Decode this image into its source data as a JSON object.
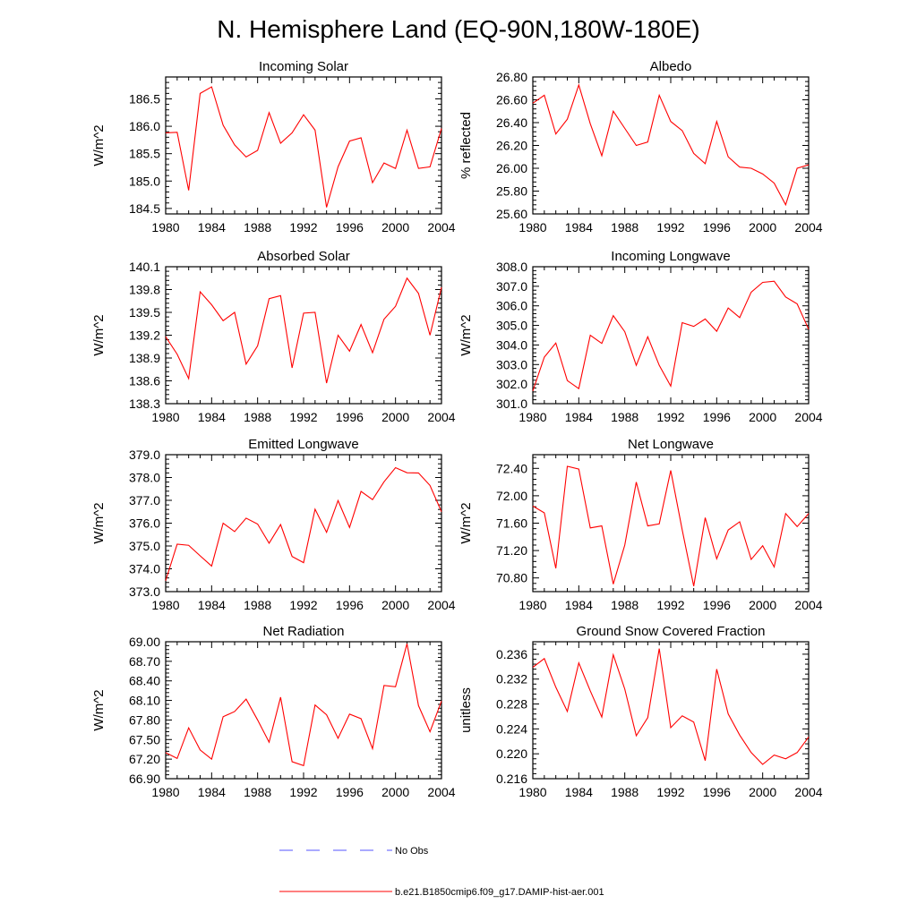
{
  "title": "N. Hemisphere Land (EQ-90N,180W-180E)",
  "chart_data": [
    {
      "type": "line",
      "title": "Incoming Solar",
      "ylabel": "W/m^2",
      "xlim": [
        1980,
        2004
      ],
      "ylim": [
        184.4,
        186.9
      ],
      "yticks": [
        "184.5",
        "185.0",
        "185.5",
        "186.0",
        "186.5"
      ],
      "x": [
        1980,
        1981,
        1982,
        1983,
        1984,
        1985,
        1986,
        1987,
        1988,
        1989,
        1990,
        1991,
        1992,
        1993,
        1994,
        1995,
        1996,
        1997,
        1998,
        1999,
        2000,
        2001,
        2002,
        2003,
        2004
      ],
      "series": [
        {
          "name": "b.e21.B1850cmip6.f09_g17.DAMIP-hist-aer.001",
          "color": "#ff0000",
          "values": [
            185.88,
            185.89,
            184.83,
            186.6,
            186.72,
            186.02,
            185.66,
            185.44,
            185.56,
            186.25,
            185.69,
            185.88,
            186.21,
            185.93,
            184.52,
            185.26,
            185.73,
            185.79,
            184.97,
            185.33,
            185.23,
            185.93,
            185.23,
            185.26,
            185.96
          ]
        }
      ]
    },
    {
      "type": "line",
      "title": "Albedo",
      "ylabel": "% reflected",
      "xlim": [
        1980,
        2004
      ],
      "ylim": [
        25.6,
        26.8
      ],
      "yticks": [
        "25.60",
        "25.80",
        "26.00",
        "26.20",
        "26.40",
        "26.60",
        "26.80"
      ],
      "x": [
        1980,
        1981,
        1982,
        1983,
        1984,
        1985,
        1986,
        1987,
        1988,
        1989,
        1990,
        1991,
        1992,
        1993,
        1994,
        1995,
        1996,
        1997,
        1998,
        1999,
        2000,
        2001,
        2002,
        2003,
        2004
      ],
      "series": [
        {
          "name": "b.e21.B1850cmip6.f09_g17.DAMIP-hist-aer.001",
          "color": "#ff0000",
          "values": [
            26.57,
            26.64,
            26.3,
            26.43,
            26.73,
            26.39,
            26.11,
            26.5,
            26.35,
            26.2,
            26.23,
            26.64,
            26.41,
            26.33,
            26.13,
            26.04,
            26.41,
            26.1,
            26.01,
            26.0,
            25.95,
            25.87,
            25.68,
            26.0,
            26.03
          ]
        }
      ]
    },
    {
      "type": "line",
      "title": "Absorbed Solar",
      "ylabel": "W/m^2",
      "xlim": [
        1980,
        2004
      ],
      "ylim": [
        138.3,
        140.1
      ],
      "yticks": [
        "138.3",
        "138.6",
        "138.9",
        "139.2",
        "139.5",
        "139.8",
        "140.1"
      ],
      "x": [
        1980,
        1981,
        1982,
        1983,
        1984,
        1985,
        1986,
        1987,
        1988,
        1989,
        1990,
        1991,
        1992,
        1993,
        1994,
        1995,
        1996,
        1997,
        1998,
        1999,
        2000,
        2001,
        2002,
        2003,
        2004
      ],
      "series": [
        {
          "name": "b.e21.B1850cmip6.f09_g17.DAMIP-hist-aer.001",
          "color": "#ff0000",
          "values": [
            139.18,
            138.95,
            138.63,
            139.77,
            139.6,
            139.39,
            139.5,
            138.82,
            139.06,
            139.68,
            139.72,
            138.77,
            139.49,
            139.5,
            138.57,
            139.2,
            138.99,
            139.34,
            138.97,
            139.41,
            139.58,
            139.95,
            139.75,
            139.2,
            139.83
          ]
        }
      ]
    },
    {
      "type": "line",
      "title": "Incoming Longwave",
      "ylabel": "W/m^2",
      "xlim": [
        1980,
        2004
      ],
      "ylim": [
        301.0,
        308.0
      ],
      "yticks": [
        "301.0",
        "302.0",
        "303.0",
        "304.0",
        "305.0",
        "306.0",
        "307.0",
        "308.0"
      ],
      "x": [
        1980,
        1981,
        1982,
        1983,
        1984,
        1985,
        1986,
        1987,
        1988,
        1989,
        1990,
        1991,
        1992,
        1993,
        1994,
        1995,
        1996,
        1997,
        1998,
        1999,
        2000,
        2001,
        2002,
        2003,
        2004
      ],
      "series": [
        {
          "name": "b.e21.B1850cmip6.f09_g17.DAMIP-hist-aer.001",
          "color": "#ff0000",
          "values": [
            301.65,
            303.38,
            304.1,
            302.18,
            301.77,
            304.5,
            304.08,
            305.5,
            304.68,
            302.96,
            304.42,
            302.96,
            301.9,
            305.14,
            304.95,
            305.33,
            304.7,
            305.89,
            305.4,
            306.7,
            307.2,
            307.26,
            306.45,
            306.1,
            304.8
          ]
        }
      ]
    },
    {
      "type": "line",
      "title": "Emitted Longwave",
      "ylabel": "W/m^2",
      "xlim": [
        1980,
        2004
      ],
      "ylim": [
        373.0,
        379.0
      ],
      "yticks": [
        "373.0",
        "374.0",
        "375.0",
        "376.0",
        "377.0",
        "378.0",
        "379.0"
      ],
      "x": [
        1980,
        1981,
        1982,
        1983,
        1984,
        1985,
        1986,
        1987,
        1988,
        1989,
        1990,
        1991,
        1992,
        1993,
        1994,
        1995,
        1996,
        1997,
        1998,
        1999,
        2000,
        2001,
        2002,
        2003,
        2004
      ],
      "series": [
        {
          "name": "b.e21.B1850cmip6.f09_g17.DAMIP-hist-aer.001",
          "color": "#ff0000",
          "values": [
            373.48,
            375.08,
            375.03,
            374.57,
            374.12,
            376.0,
            375.63,
            376.22,
            375.96,
            375.12,
            375.94,
            374.54,
            374.27,
            376.61,
            375.6,
            376.99,
            375.81,
            377.39,
            377.03,
            377.81,
            378.43,
            378.21,
            378.2,
            377.65,
            376.5
          ]
        }
      ]
    },
    {
      "type": "line",
      "title": "Net Longwave",
      "ylabel": "W/m^2",
      "xlim": [
        1980,
        2004
      ],
      "ylim": [
        70.6,
        72.6
      ],
      "yticks": [
        "70.80",
        "71.20",
        "71.60",
        "72.00",
        "72.40"
      ],
      "x": [
        1980,
        1981,
        1982,
        1983,
        1984,
        1985,
        1986,
        1987,
        1988,
        1989,
        1990,
        1991,
        1992,
        1993,
        1994,
        1995,
        1996,
        1997,
        1998,
        1999,
        2000,
        2001,
        2002,
        2003,
        2004
      ],
      "series": [
        {
          "name": "b.e21.B1850cmip6.f09_g17.DAMIP-hist-aer.001",
          "color": "#ff0000",
          "values": [
            71.85,
            71.75,
            70.94,
            72.43,
            72.39,
            71.53,
            71.56,
            70.71,
            71.28,
            72.2,
            71.56,
            71.59,
            72.37,
            71.5,
            70.68,
            71.68,
            71.08,
            71.5,
            71.62,
            71.07,
            71.27,
            70.96,
            71.74,
            71.55,
            71.74
          ]
        }
      ]
    },
    {
      "type": "line",
      "title": "Net Radiation",
      "ylabel": "W/m^2",
      "xlim": [
        1980,
        2004
      ],
      "ylim": [
        66.9,
        69.0
      ],
      "yticks": [
        "66.90",
        "67.20",
        "67.50",
        "67.80",
        "68.10",
        "68.40",
        "68.70",
        "69.00"
      ],
      "x": [
        1980,
        1981,
        1982,
        1983,
        1984,
        1985,
        1986,
        1987,
        1988,
        1989,
        1990,
        1991,
        1992,
        1993,
        1994,
        1995,
        1996,
        1997,
        1998,
        1999,
        2000,
        2001,
        2002,
        2003,
        2004
      ],
      "series": [
        {
          "name": "b.e21.B1850cmip6.f09_g17.DAMIP-hist-aer.001",
          "color": "#ff0000",
          "values": [
            67.3,
            67.21,
            67.68,
            67.34,
            67.2,
            67.85,
            67.93,
            68.12,
            67.8,
            67.46,
            68.15,
            67.16,
            67.1,
            68.03,
            67.88,
            67.52,
            67.89,
            67.82,
            67.36,
            68.33,
            68.31,
            68.97,
            68.02,
            67.62,
            68.09
          ]
        }
      ]
    },
    {
      "type": "line",
      "title": "Ground Snow Covered Fraction",
      "ylabel": "unitless",
      "xlim": [
        1980,
        2004
      ],
      "ylim": [
        0.216,
        0.238
      ],
      "yticks": [
        "0.216",
        "0.220",
        "0.224",
        "0.228",
        "0.232",
        "0.236"
      ],
      "x": [
        1980,
        1981,
        1982,
        1983,
        1984,
        1985,
        1986,
        1987,
        1988,
        1989,
        1990,
        1991,
        1992,
        1993,
        1994,
        1995,
        1996,
        1997,
        1998,
        1999,
        2000,
        2001,
        2002,
        2003,
        2004
      ],
      "series": [
        {
          "name": "b.e21.B1850cmip6.f09_g17.DAMIP-hist-aer.001",
          "color": "#ff0000",
          "values": [
            0.2339,
            0.2353,
            0.2307,
            0.2268,
            0.2346,
            0.2301,
            0.2259,
            0.2359,
            0.2304,
            0.2229,
            0.2258,
            0.2369,
            0.2242,
            0.2261,
            0.2251,
            0.2189,
            0.2336,
            0.2264,
            0.223,
            0.2202,
            0.2183,
            0.2198,
            0.2192,
            0.2202,
            0.2227
          ]
        }
      ]
    }
  ],
  "xticks": [
    "1980",
    "1984",
    "1988",
    "1992",
    "1996",
    "2000",
    "2004"
  ],
  "legend": [
    {
      "label": "No Obs",
      "style": "dashed",
      "color": "#5555ff"
    },
    {
      "label": "b.e21.B1850cmip6.f09_g17.DAMIP-hist-aer.001",
      "style": "solid",
      "color": "#ff0000"
    }
  ]
}
